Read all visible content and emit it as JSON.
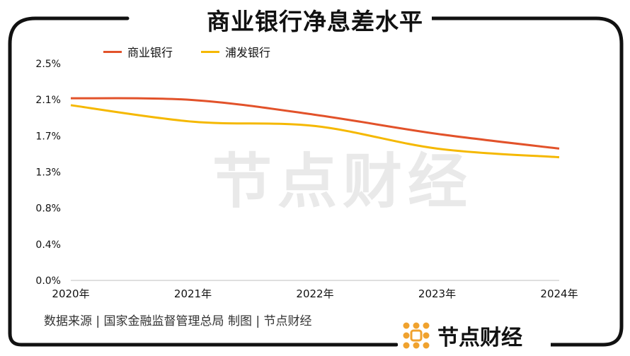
{
  "title": "商业银行净息差水平",
  "source_note": "数据来源 | 国家金融监督管理总局 制图 | 节点财经",
  "watermark_text": "节点财经",
  "brand": {
    "name": "节点财经",
    "logo_icon": "dot-grid-logo-icon",
    "logo_color": "#F0A22E"
  },
  "chart_data": {
    "type": "line",
    "x": [
      "2020年",
      "2021年",
      "2022年",
      "2023年",
      "2024年"
    ],
    "y_ticks": [
      "0.0%",
      "0.4%",
      "0.8%",
      "1.3%",
      "1.7%",
      "2.1%",
      "2.5%"
    ],
    "ylim": [
      0,
      2.5
    ],
    "series": [
      {
        "name": "商业银行",
        "color": "#E2522A",
        "values": [
          2.1,
          2.08,
          1.91,
          1.69,
          1.52
        ]
      },
      {
        "name": "浦发银行",
        "color": "#F5B800",
        "values": [
          2.02,
          1.83,
          1.78,
          1.52,
          1.42
        ]
      }
    ],
    "legend_position": "top-left",
    "grid": false
  }
}
